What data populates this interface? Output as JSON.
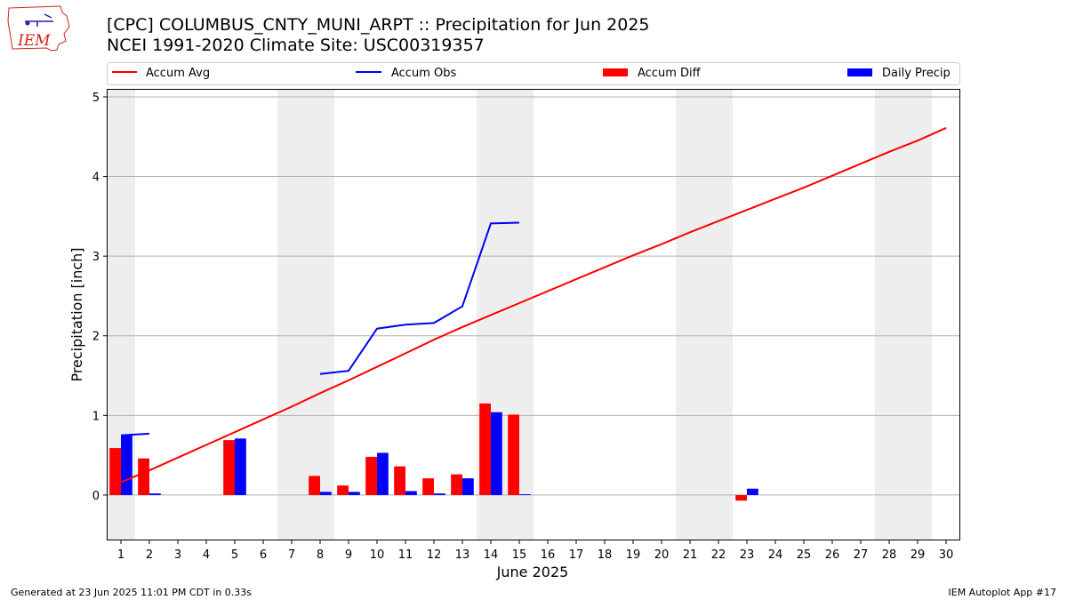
{
  "header": {
    "logo_text": "IEM",
    "title_line1": "[CPC] COLUMBUS_CNTY_MUNI_ARPT :: Precipitation for Jun 2025",
    "title_line2": "NCEI 1991-2020 Climate Site: USC00319357"
  },
  "footer": {
    "left": "Generated at 23 Jun 2025 11:01 PM CDT in 0.33s",
    "right": "IEM Autoplot App #17"
  },
  "colors": {
    "avg": "#ff0000",
    "obs": "#0000ff",
    "diff": "#ff0000",
    "daily": "#0000ff",
    "weekend_band": "#eeeeee",
    "grid": "#b0b0b0"
  },
  "chart_data": {
    "type": "bar",
    "xlabel": "June 2025",
    "ylabel": "Precipitation [inch]",
    "xlim": [
      0.5,
      30.5
    ],
    "ylim": [
      -0.57,
      5.1
    ],
    "grid": "horizontal",
    "legend_placement": "top",
    "x_ticks": [
      "1",
      "2",
      "3",
      "4",
      "5",
      "6",
      "7",
      "8",
      "9",
      "10",
      "11",
      "12",
      "13",
      "14",
      "15",
      "16",
      "17",
      "18",
      "19",
      "20",
      "21",
      "22",
      "23",
      "24",
      "25",
      "26",
      "27",
      "28",
      "29",
      "30"
    ],
    "y_ticks": [
      "0",
      "1",
      "2",
      "3",
      "4",
      "5"
    ],
    "weekend_days": [
      1,
      7,
      8,
      14,
      15,
      21,
      22,
      28,
      29
    ],
    "legend": [
      "Accum Avg",
      "Accum Obs",
      "Accum Diff",
      "Daily Precip"
    ],
    "accum_avg": {
      "x": [
        1,
        2,
        3,
        4,
        5,
        6,
        7,
        8,
        9,
        10,
        11,
        12,
        13,
        14,
        15,
        16,
        17,
        18,
        19,
        20,
        21,
        22,
        23,
        24,
        25,
        26,
        27,
        28,
        29,
        30
      ],
      "y": [
        0.16,
        0.31,
        0.47,
        0.63,
        0.79,
        0.95,
        1.11,
        1.28,
        1.44,
        1.61,
        1.78,
        1.95,
        2.11,
        2.26,
        2.41,
        2.56,
        2.71,
        2.86,
        3.01,
        3.15,
        3.3,
        3.44,
        3.58,
        3.72,
        3.86,
        4.01,
        4.16,
        4.31,
        4.45,
        4.61
      ]
    },
    "accum_obs": {
      "segments": [
        {
          "x": [
            1,
            2
          ],
          "y": [
            0.75,
            0.77
          ]
        },
        {
          "x": [
            8,
            9,
            10,
            11,
            12,
            13,
            14,
            15
          ],
          "y": [
            1.52,
            1.56,
            2.09,
            2.14,
            2.16,
            2.37,
            3.41,
            3.42
          ]
        }
      ]
    },
    "accum_diff": {
      "x": [
        1,
        2,
        5,
        8,
        9,
        10,
        11,
        12,
        13,
        14,
        15,
        23
      ],
      "y": [
        0.59,
        0.46,
        0.69,
        0.24,
        0.12,
        0.48,
        0.36,
        0.21,
        0.26,
        1.15,
        1.01,
        -0.07
      ]
    },
    "daily_precip": {
      "x": [
        1,
        2,
        5,
        8,
        9,
        10,
        11,
        12,
        13,
        14,
        15,
        23
      ],
      "y": [
        0.75,
        0.02,
        0.71,
        0.04,
        0.04,
        0.53,
        0.05,
        0.02,
        0.21,
        1.04,
        0.01,
        0.08
      ]
    }
  }
}
